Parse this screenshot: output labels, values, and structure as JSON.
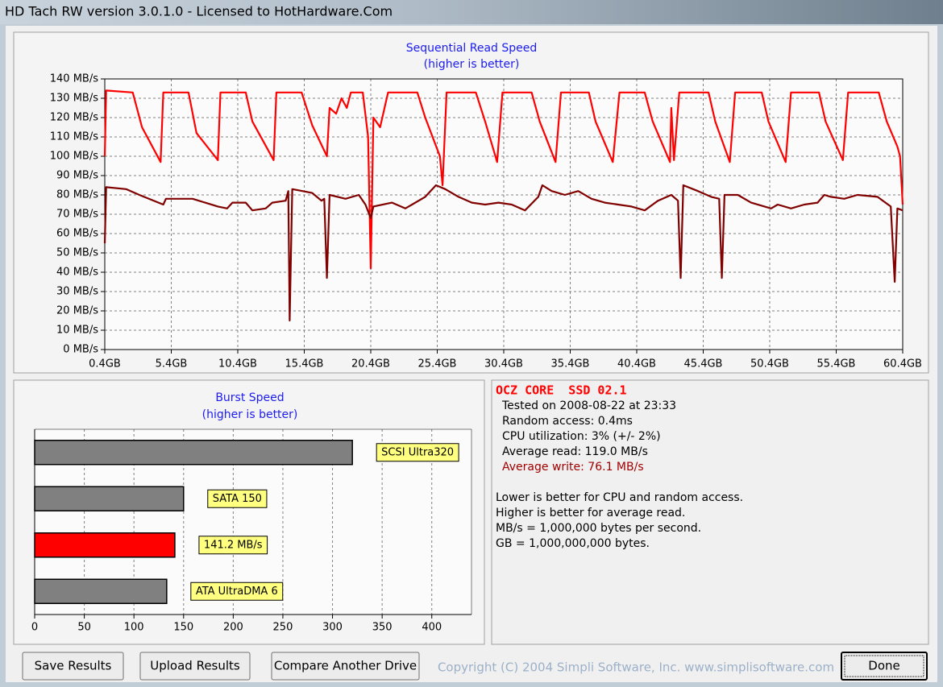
{
  "window": {
    "title": "HD Tach RW version 3.0.1.0 - Licensed to HotHardware.Com"
  },
  "chart_data": [
    {
      "type": "line",
      "title": "Sequential Read Speed",
      "subtitle": "(higher is better)",
      "xlim": [
        0.4,
        60.4
      ],
      "ylim": [
        0,
        140
      ],
      "grid": true,
      "xticks": [
        {
          "value": 0.4,
          "label": "0.4GB"
        },
        {
          "value": 5.4,
          "label": "5.4GB"
        },
        {
          "value": 10.4,
          "label": "10.4GB"
        },
        {
          "value": 15.4,
          "label": "15.4GB"
        },
        {
          "value": 20.4,
          "label": "20.4GB"
        },
        {
          "value": 25.4,
          "label": "25.4GB"
        },
        {
          "value": 30.4,
          "label": "30.4GB"
        },
        {
          "value": 35.4,
          "label": "35.4GB"
        },
        {
          "value": 40.4,
          "label": "40.4GB"
        },
        {
          "value": 45.4,
          "label": "45.4GB"
        },
        {
          "value": 50.4,
          "label": "50.4GB"
        },
        {
          "value": 55.4,
          "label": "55.4GB"
        },
        {
          "value": 60.4,
          "label": "60.4GB"
        }
      ],
      "yticks": [
        {
          "value": 0,
          "label": "0 MB/s"
        },
        {
          "value": 10,
          "label": "10 MB/s"
        },
        {
          "value": 20,
          "label": "20 MB/s"
        },
        {
          "value": 30,
          "label": "30 MB/s"
        },
        {
          "value": 40,
          "label": "40 MB/s"
        },
        {
          "value": 50,
          "label": "50 MB/s"
        },
        {
          "value": 60,
          "label": "60 MB/s"
        },
        {
          "value": 70,
          "label": "70 MB/s"
        },
        {
          "value": 80,
          "label": "80 MB/s"
        },
        {
          "value": 90,
          "label": "90 MB/s"
        },
        {
          "value": 100,
          "label": "100 MB/s"
        },
        {
          "value": 110,
          "label": "110 MB/s"
        },
        {
          "value": 120,
          "label": "120 MB/s"
        },
        {
          "value": 130,
          "label": "130 MB/s"
        },
        {
          "value": 140,
          "label": "140 MB/s"
        }
      ],
      "series": [
        {
          "color": "#ff0000",
          "x": [
            0.4,
            0.5,
            2.5,
            3.2,
            4.6,
            4.8,
            6.7,
            7.3,
            8.9,
            9.1,
            11.0,
            11.5,
            13.1,
            13.3,
            15.2,
            16.0,
            17.1,
            17.3,
            17.8,
            18.2,
            18.6,
            18.9,
            19.8,
            20.2,
            20.4,
            20.6,
            21.1,
            21.7,
            23.9,
            24.5,
            25.6,
            25.8,
            26.1,
            28.3,
            29.0,
            29.9,
            30.3,
            32.5,
            33.1,
            34.3,
            34.7,
            36.8,
            37.3,
            38.6,
            39.1,
            41.0,
            41.6,
            42.9,
            43.0,
            43.2,
            43.6,
            45.8,
            46.3,
            47.4,
            47.8,
            49.8,
            50.3,
            51.6,
            52.0,
            54.1,
            54.6,
            55.9,
            56.3,
            58.6,
            59.2,
            60.0,
            60.2,
            60.4
          ],
          "values": [
            100,
            134,
            133,
            115,
            97,
            133,
            133,
            112,
            98,
            133,
            133,
            118,
            98,
            133,
            133,
            116,
            100,
            125,
            122,
            130,
            125,
            133,
            133,
            110,
            42,
            120,
            115,
            133,
            133,
            120,
            100,
            85,
            133,
            133,
            118,
            97,
            133,
            133,
            118,
            97,
            133,
            133,
            118,
            97,
            133,
            133,
            118,
            97,
            125,
            98,
            133,
            133,
            118,
            97,
            133,
            133,
            118,
            97,
            133,
            133,
            118,
            98,
            133,
            133,
            118,
            105,
            100,
            75
          ]
        },
        {
          "color": "#800000",
          "x": [
            0.4,
            0.5,
            2.0,
            3.0,
            4.8,
            5.0,
            7.0,
            8.9,
            9.6,
            10.0,
            11.0,
            11.5,
            12.5,
            13.0,
            14.0,
            14.2,
            14.3,
            14.5,
            16.0,
            16.7,
            16.9,
            17.1,
            17.3,
            18.5,
            19.5,
            20.0,
            20.4,
            20.6,
            22.0,
            23.0,
            23.5,
            24.5,
            25.3,
            26.0,
            27.0,
            28.0,
            29.0,
            30.0,
            31.0,
            32.0,
            33.0,
            33.3,
            34.0,
            35.0,
            36.0,
            37.0,
            38.0,
            39.0,
            40.0,
            41.0,
            42.0,
            43.0,
            43.5,
            43.7,
            43.9,
            45.0,
            46.0,
            46.6,
            46.8,
            47.0,
            48.0,
            49.0,
            50.5,
            51.0,
            52.0,
            53.0,
            54.0,
            54.5,
            55.0,
            56.0,
            57.0,
            58.5,
            59.5,
            59.8,
            60.0,
            60.4
          ],
          "values": [
            55,
            84,
            83,
            80,
            75,
            78,
            78,
            74,
            73,
            76,
            76,
            72,
            73,
            76,
            77,
            82,
            15,
            83,
            81,
            77,
            78,
            37,
            80,
            78,
            80,
            75,
            68,
            74,
            76,
            73,
            75,
            79,
            85,
            83,
            79,
            76,
            75,
            76,
            75,
            72,
            79,
            85,
            82,
            80,
            82,
            78,
            76,
            75,
            74,
            72,
            77,
            80,
            77,
            37,
            85,
            82,
            79,
            78,
            37,
            80,
            80,
            76,
            73,
            75,
            73,
            75,
            76,
            80,
            79,
            78,
            80,
            79,
            74,
            35,
            73,
            72
          ]
        }
      ]
    },
    {
      "type": "hbar",
      "title": "Burst Speed",
      "subtitle": "(higher is better)",
      "categories": [
        "SCSI Ultra320",
        "SATA 150",
        null,
        "ATA UltraDMA 6"
      ],
      "values": [
        320,
        150,
        141.2,
        133
      ],
      "value_labels": [
        null,
        null,
        "141.2 MB/s",
        null
      ],
      "colors": [
        "#808080",
        "#808080",
        "#ff0000",
        "#808080"
      ],
      "xlim": [
        0,
        440
      ],
      "xticks": [
        0,
        50,
        100,
        150,
        200,
        250,
        300,
        350,
        400
      ],
      "grid": true
    }
  ],
  "info": {
    "drive": "OCZ CORE  SSD 02.1",
    "lines": [
      "Tested on 2008-08-22 at 23:33",
      "Random access: 0.4ms",
      "CPU utilization: 3% (+/- 2%)",
      "Average read: 119.0 MB/s"
    ],
    "write_line": "Average write: 76.1 MB/s",
    "notes": [
      "Lower is better for CPU and random access.",
      "Higher is better for average read.",
      "MB/s = 1,000,000 bytes per second.",
      "GB = 1,000,000,000 bytes."
    ]
  },
  "buttons": [
    "Save Results",
    "Upload Results",
    "Compare Another Drive",
    "Done"
  ],
  "copyright": "Copyright (C) 2004 Simpli Software, Inc. www.simplisoftware.com"
}
